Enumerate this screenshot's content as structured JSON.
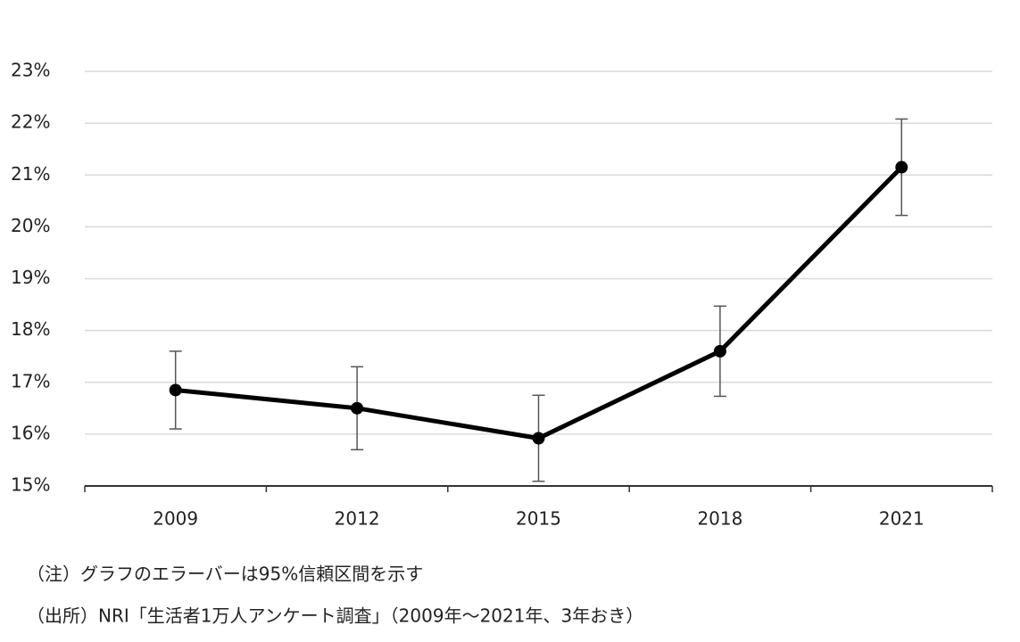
{
  "chart_data": {
    "type": "line",
    "categories": [
      "2009",
      "2012",
      "2015",
      "2018",
      "2021"
    ],
    "values": [
      16.85,
      16.5,
      15.92,
      17.6,
      21.15
    ],
    "errors": [
      0.75,
      0.8,
      0.83,
      0.87,
      0.93
    ],
    "color": "#000000",
    "ylim": [
      15,
      23
    ],
    "yticks": [
      {
        "value": 15,
        "label": "15%"
      },
      {
        "value": 16,
        "label": "16%"
      },
      {
        "value": 17,
        "label": "17%"
      },
      {
        "value": 18,
        "label": "18%"
      },
      {
        "value": 19,
        "label": "19%"
      },
      {
        "value": 20,
        "label": "20%"
      },
      {
        "value": 21,
        "label": "21%"
      },
      {
        "value": 22,
        "label": "22%"
      },
      {
        "value": 23,
        "label": "23%"
      }
    ],
    "grid": true,
    "notes": [
      "（注）グラフのエラーバーは95%信頼区間を示す",
      "（出所）NRI「生活者1万人アンケート調査」（2009年～2021年、3年おき）"
    ]
  }
}
